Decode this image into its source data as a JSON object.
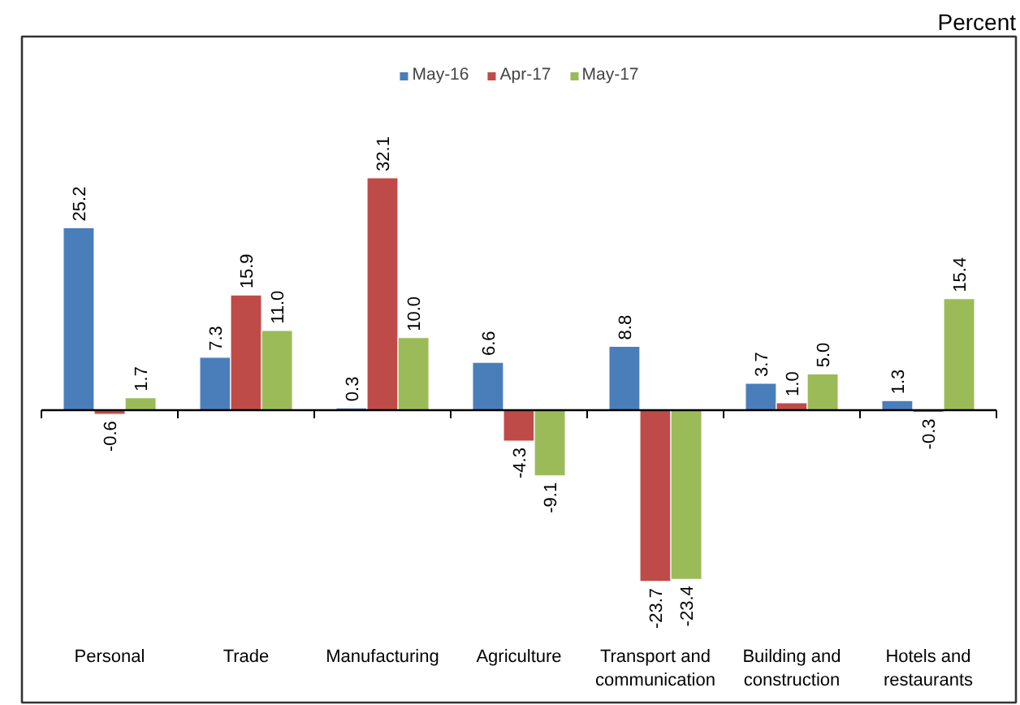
{
  "chart_data": {
    "type": "bar",
    "annotations": [
      "Percent"
    ],
    "categories": [
      "Personal",
      "Trade",
      "Manufacturing",
      "Agriculture",
      "Transport and communication",
      "Building and construction",
      "Hotels and restaurants"
    ],
    "series": [
      {
        "name": "May-16",
        "color": "#4a7ebb",
        "values": [
          25.2,
          7.3,
          0.3,
          6.6,
          8.8,
          3.7,
          1.3
        ],
        "value_labels": [
          "25.2",
          "7.3",
          "0.3",
          "6.6",
          "8.8",
          "3.7",
          "1.3"
        ]
      },
      {
        "name": "Apr-17",
        "color": "#be4b48",
        "values": [
          -0.6,
          15.9,
          32.1,
          -4.3,
          -23.7,
          1.0,
          -0.3
        ],
        "value_labels": [
          "-0.6",
          "15.9",
          "32.1",
          "-4.3",
          "-23.7",
          "1.0",
          "-0.3"
        ]
      },
      {
        "name": "May-17",
        "color": "#9bbb59",
        "values": [
          1.7,
          11.0,
          10.0,
          -9.1,
          -23.4,
          5.0,
          15.4
        ],
        "value_labels": [
          "1.7",
          "11.0",
          "10.0",
          "-9.1",
          "-23.4",
          "5.0",
          "15.4"
        ]
      }
    ],
    "legend": "top",
    "tick_labels": "x"
  }
}
